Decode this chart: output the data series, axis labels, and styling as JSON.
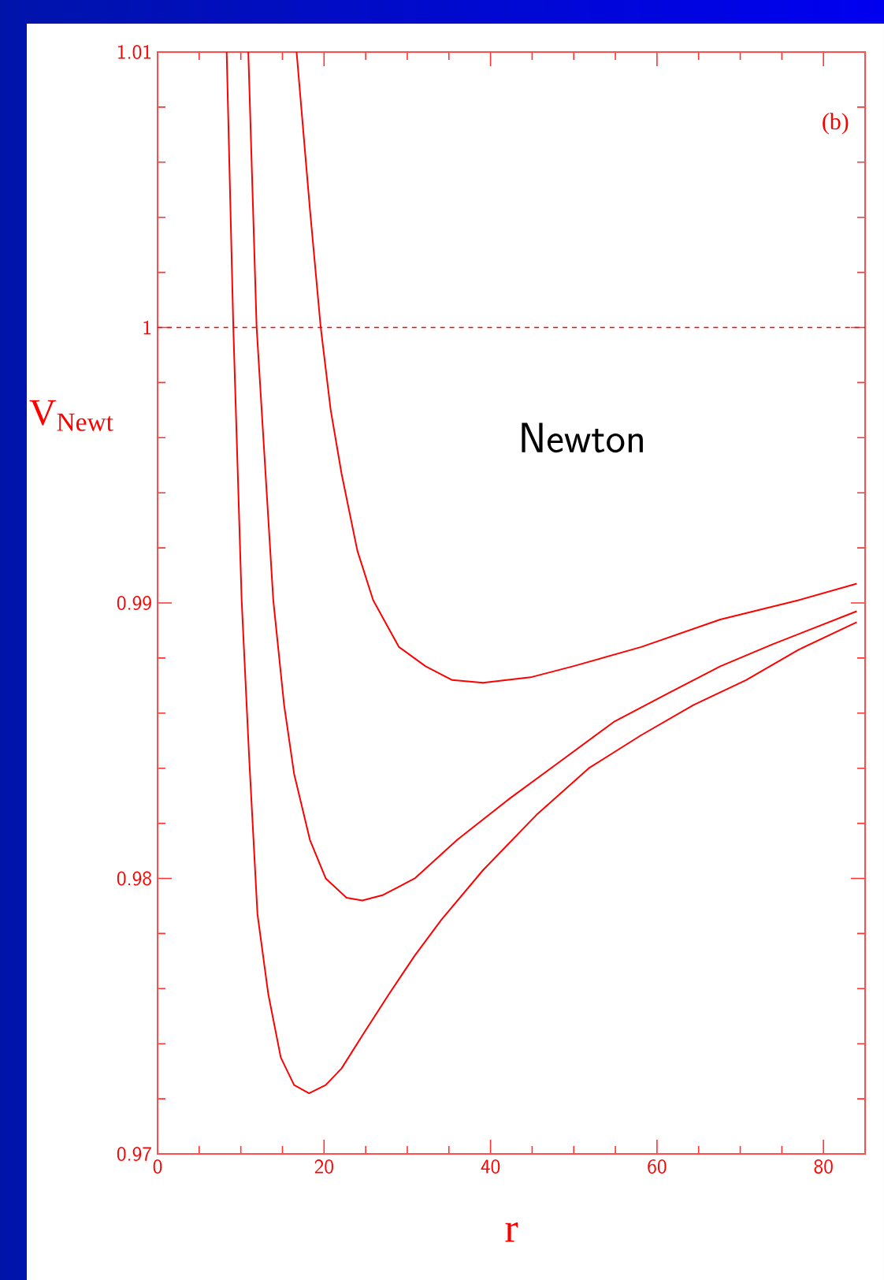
{
  "chart_data": {
    "type": "line",
    "xlabel": "r",
    "ylabel": "V$_{Newt}$",
    "annotations": [
      "(b)",
      "Newton"
    ],
    "xlim": [
      0,
      85
    ],
    "ylim": [
      0.97,
      1.01
    ],
    "xticks": [
      0,
      20,
      40,
      60,
      80
    ],
    "yticks": [
      0.97,
      0.98,
      0.99,
      1,
      1.01
    ],
    "ref_lines": [
      {
        "axis": "y",
        "value": 1,
        "line_style": "dashed",
        "color": "#ff0000"
      }
    ],
    "series": [
      {
        "color": "#ff0000",
        "x": [
          8.3,
          9.1,
          10.1,
          11.0,
          12.0,
          13.3,
          14.8,
          16.4,
          18.2,
          20.2,
          22.1,
          24.6,
          27.8,
          30.9,
          34.1,
          39.1,
          45.5,
          51.8,
          58.1,
          64.4,
          70.7,
          77.0,
          84.0
        ],
        "values": [
          1.01,
          1.0,
          0.9901,
          0.9844,
          0.9787,
          0.9758,
          0.9735,
          0.9725,
          0.9722,
          0.9725,
          0.9731,
          0.9743,
          0.9758,
          0.9772,
          0.9785,
          0.9803,
          0.9823,
          0.984,
          0.9852,
          0.9863,
          0.9872,
          0.9883,
          0.9893
        ]
      },
      {
        "color": "#ff0000",
        "x": [
          10.9,
          11.9,
          13.9,
          15.2,
          16.4,
          18.3,
          20.2,
          22.7,
          24.6,
          27.1,
          30.9,
          36.0,
          42.3,
          48.6,
          54.9,
          61.2,
          67.6,
          73.9,
          84.0
        ],
        "values": [
          1.01,
          1.0,
          0.9901,
          0.9863,
          0.9838,
          0.9814,
          0.98,
          0.9793,
          0.9792,
          0.9794,
          0.98,
          0.9814,
          0.9829,
          0.9843,
          0.9857,
          0.9867,
          0.9877,
          0.9885,
          0.9897
        ]
      },
      {
        "color": "#ff0000",
        "x": [
          16.7,
          18.3,
          19.6,
          20.8,
          22.1,
          24.0,
          25.9,
          29.0,
          32.2,
          35.4,
          39.1,
          44.8,
          49.9,
          58.1,
          67.6,
          77.0,
          84.0
        ],
        "values": [
          1.01,
          1.0043,
          1.0,
          0.997,
          0.9947,
          0.9919,
          0.9901,
          0.9884,
          0.9877,
          0.9872,
          0.9871,
          0.9873,
          0.9877,
          0.9884,
          0.9894,
          0.9901,
          0.9907
        ]
      }
    ]
  }
}
